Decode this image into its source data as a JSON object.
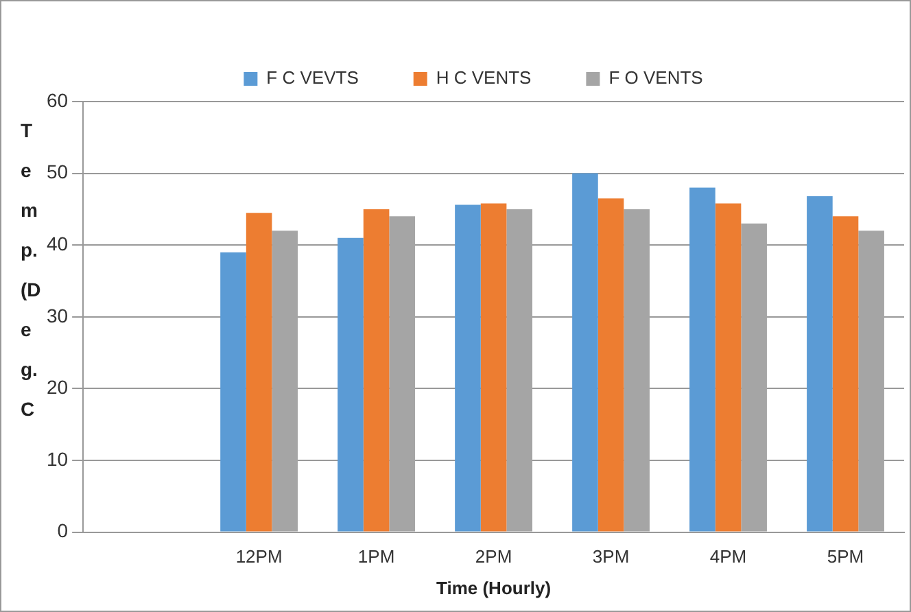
{
  "chart_data": {
    "type": "bar",
    "xlabel": "Time (Hourly)",
    "ylabel": "Temp.(Deg.C",
    "categories": [
      null,
      "12PM",
      "1PM",
      "2PM",
      "3PM",
      "4PM",
      "5PM"
    ],
    "series": [
      {
        "name": "F C VEVTS",
        "color": "#5b9bd5",
        "values": [
          null,
          39,
          41,
          45.6,
          50,
          48,
          46.8
        ]
      },
      {
        "name": "H C VENTS",
        "color": "#ed7d31",
        "values": [
          null,
          44.5,
          45,
          45.8,
          46.5,
          45.8,
          44
        ]
      },
      {
        "name": "F O VENTS",
        "color": "#a5a5a5",
        "values": [
          null,
          42,
          44,
          45,
          45,
          43,
          42
        ]
      }
    ],
    "ylim": [
      0,
      60
    ],
    "yticks": [
      0,
      10,
      20,
      30,
      40,
      50,
      60
    ],
    "grid": "y",
    "legend": "top"
  }
}
